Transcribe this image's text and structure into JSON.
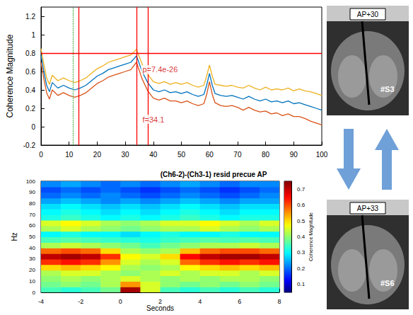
{
  "chart_data": [
    {
      "type": "line",
      "ylabel": "Coherence Magnitude",
      "x": [
        0,
        1,
        2,
        3,
        4,
        6,
        8,
        10,
        12,
        14,
        16,
        18,
        20,
        22,
        24,
        26,
        28,
        30,
        32,
        34,
        36,
        38,
        40,
        42,
        44,
        46,
        48,
        50,
        52,
        54,
        56,
        58,
        59,
        60,
        61,
        62,
        64,
        66,
        68,
        70,
        72,
        74,
        76,
        78,
        80,
        82,
        84,
        86,
        88,
        90,
        92,
        94,
        96,
        98,
        100
      ],
      "series": [
        {
          "color": "#d95319",
          "values": [
            0.7,
            0.52,
            0.37,
            0.3,
            0.4,
            0.34,
            0.37,
            0.34,
            0.32,
            0.34,
            0.37,
            0.42,
            0.47,
            0.5,
            0.54,
            0.56,
            0.58,
            0.6,
            0.62,
            0.7,
            0.52,
            0.39,
            0.31,
            0.29,
            0.31,
            0.28,
            0.28,
            0.26,
            0.28,
            0.25,
            0.23,
            0.25,
            0.35,
            0.49,
            0.35,
            0.26,
            0.23,
            0.22,
            0.23,
            0.21,
            0.18,
            0.21,
            0.18,
            0.16,
            0.17,
            0.14,
            0.15,
            0.12,
            0.14,
            0.11,
            0.11,
            0.09,
            0.06,
            0.04,
            0.02
          ]
        },
        {
          "color": "#0072bd",
          "values": [
            0.78,
            0.6,
            0.45,
            0.38,
            0.48,
            0.42,
            0.45,
            0.42,
            0.4,
            0.42,
            0.45,
            0.5,
            0.55,
            0.58,
            0.62,
            0.64,
            0.66,
            0.68,
            0.7,
            0.77,
            0.6,
            0.48,
            0.4,
            0.38,
            0.4,
            0.37,
            0.38,
            0.36,
            0.38,
            0.35,
            0.33,
            0.35,
            0.45,
            0.58,
            0.45,
            0.36,
            0.34,
            0.33,
            0.34,
            0.32,
            0.3,
            0.33,
            0.3,
            0.28,
            0.3,
            0.27,
            0.28,
            0.26,
            0.28,
            0.25,
            0.26,
            0.24,
            0.22,
            0.2,
            0.18
          ]
        },
        {
          "color": "#edb120",
          "values": [
            0.85,
            0.68,
            0.53,
            0.46,
            0.56,
            0.5,
            0.53,
            0.5,
            0.48,
            0.5,
            0.53,
            0.58,
            0.63,
            0.66,
            0.7,
            0.72,
            0.74,
            0.76,
            0.78,
            0.84,
            0.68,
            0.57,
            0.49,
            0.47,
            0.49,
            0.46,
            0.48,
            0.46,
            0.48,
            0.45,
            0.43,
            0.45,
            0.55,
            0.67,
            0.55,
            0.46,
            0.45,
            0.44,
            0.45,
            0.43,
            0.42,
            0.45,
            0.42,
            0.4,
            0.43,
            0.4,
            0.41,
            0.4,
            0.42,
            0.39,
            0.41,
            0.39,
            0.38,
            0.36,
            0.34
          ]
        }
      ],
      "xlim": [
        0,
        100
      ],
      "xticks": [
        0,
        10,
        20,
        30,
        40,
        50,
        60,
        70,
        80,
        90,
        100
      ],
      "ylim": [
        -0.2,
        1.3
      ],
      "yticks": [
        -0.2,
        0,
        0.2,
        0.4,
        0.6,
        0.8,
        1,
        1.2
      ],
      "grid": false,
      "reference_lines": [
        {
          "axis": "x",
          "value": 11.5,
          "color": "#2ca02c",
          "line_style": "dotted"
        },
        {
          "axis": "x",
          "value": 13.5,
          "color": "#ff0000",
          "line_style": "solid"
        },
        {
          "axis": "x",
          "value": 34,
          "color": "#ff0000",
          "line_style": "solid"
        },
        {
          "axis": "x",
          "value": 38,
          "color": "#ff0000",
          "line_style": "solid"
        },
        {
          "axis": "y",
          "value": 0.8,
          "color": "#ff0000",
          "line_style": "solid"
        }
      ],
      "annotations": [
        {
          "text": "p=7.4e-26",
          "x": 35,
          "y": 0.62,
          "color": "#cc0000"
        },
        {
          "text": "f=34.1",
          "x": 35,
          "y": 0.08,
          "color": "#cc0000"
        }
      ]
    },
    {
      "type": "heatmap",
      "title": "(Ch6-2)-(Ch3-1) resid precue AP",
      "xlabel": "Seconds",
      "ylabel": "Hz",
      "x_edges": [
        -4,
        -3,
        -2,
        -1,
        0,
        1,
        2,
        3,
        4,
        5,
        6,
        7,
        8
      ],
      "y_edges": [
        0,
        5,
        10,
        15,
        20,
        25,
        30,
        35,
        40,
        45,
        50,
        55,
        60,
        65,
        70,
        75,
        80,
        85,
        90,
        95,
        100
      ],
      "cells": [
        [
          0.35,
          0.33,
          0.35,
          0.38,
          0.72,
          0.45,
          0.35,
          0.33,
          0.35,
          0.33,
          0.35,
          0.33
        ],
        [
          0.38,
          0.4,
          0.38,
          0.42,
          0.55,
          0.45,
          0.4,
          0.38,
          0.4,
          0.38,
          0.4,
          0.38
        ],
        [
          0.4,
          0.42,
          0.4,
          0.42,
          0.45,
          0.42,
          0.4,
          0.42,
          0.4,
          0.42,
          0.42,
          0.4
        ],
        [
          0.42,
          0.45,
          0.45,
          0.42,
          0.4,
          0.42,
          0.45,
          0.42,
          0.45,
          0.45,
          0.42,
          0.45
        ],
        [
          0.5,
          0.52,
          0.5,
          0.48,
          0.42,
          0.4,
          0.42,
          0.48,
          0.5,
          0.52,
          0.5,
          0.52
        ],
        [
          0.62,
          0.64,
          0.62,
          0.55,
          0.45,
          0.42,
          0.45,
          0.58,
          0.62,
          0.64,
          0.62,
          0.64
        ],
        [
          0.7,
          0.72,
          0.7,
          0.62,
          0.48,
          0.45,
          0.5,
          0.65,
          0.7,
          0.72,
          0.72,
          0.7
        ],
        [
          0.58,
          0.6,
          0.58,
          0.5,
          0.42,
          0.4,
          0.42,
          0.52,
          0.58,
          0.6,
          0.6,
          0.58
        ],
        [
          0.42,
          0.44,
          0.42,
          0.4,
          0.38,
          0.35,
          0.38,
          0.4,
          0.42,
          0.42,
          0.44,
          0.42
        ],
        [
          0.35,
          0.36,
          0.35,
          0.34,
          0.33,
          0.32,
          0.34,
          0.35,
          0.36,
          0.35,
          0.36,
          0.35
        ],
        [
          0.3,
          0.32,
          0.3,
          0.3,
          0.28,
          0.3,
          0.32,
          0.3,
          0.3,
          0.32,
          0.3,
          0.3
        ],
        [
          0.42,
          0.45,
          0.42,
          0.4,
          0.38,
          0.4,
          0.42,
          0.42,
          0.45,
          0.42,
          0.4,
          0.42
        ],
        [
          0.45,
          0.48,
          0.45,
          0.42,
          0.4,
          0.42,
          0.45,
          0.45,
          0.48,
          0.45,
          0.42,
          0.45
        ],
        [
          0.32,
          0.34,
          0.32,
          0.3,
          0.32,
          0.3,
          0.32,
          0.34,
          0.32,
          0.3,
          0.32,
          0.32
        ],
        [
          0.3,
          0.32,
          0.3,
          0.28,
          0.3,
          0.28,
          0.3,
          0.32,
          0.3,
          0.28,
          0.3,
          0.3
        ],
        [
          0.28,
          0.3,
          0.28,
          0.26,
          0.28,
          0.26,
          0.28,
          0.3,
          0.28,
          0.26,
          0.28,
          0.28
        ],
        [
          0.24,
          0.26,
          0.24,
          0.22,
          0.24,
          0.22,
          0.24,
          0.26,
          0.24,
          0.22,
          0.24,
          0.24
        ],
        [
          0.2,
          0.22,
          0.2,
          0.22,
          0.2,
          0.18,
          0.2,
          0.22,
          0.2,
          0.18,
          0.2,
          0.22
        ],
        [
          0.18,
          0.2,
          0.18,
          0.2,
          0.18,
          0.16,
          0.18,
          0.2,
          0.18,
          0.16,
          0.18,
          0.2
        ],
        [
          0.22,
          0.24,
          0.22,
          0.2,
          0.22,
          0.2,
          0.22,
          0.24,
          0.22,
          0.2,
          0.22,
          0.22
        ]
      ],
      "xlim": [
        -4,
        8
      ],
      "xticks": [
        -4,
        -2,
        0,
        2,
        4,
        6,
        8
      ],
      "ylim": [
        0,
        100
      ],
      "yticks": [
        0,
        10,
        20,
        30,
        40,
        50,
        60,
        70,
        80,
        90,
        100
      ],
      "colorbar": {
        "label": "Coherence Magnitude",
        "range": [
          0.05,
          0.75
        ],
        "ticks": [
          0.1,
          0.2,
          0.3,
          0.4,
          0.5,
          0.6,
          0.7
        ]
      },
      "grid": false
    }
  ],
  "images": [
    {
      "label": "AP+30",
      "site": "#S3"
    },
    {
      "label": "AP+33",
      "site": "#S6"
    }
  ]
}
